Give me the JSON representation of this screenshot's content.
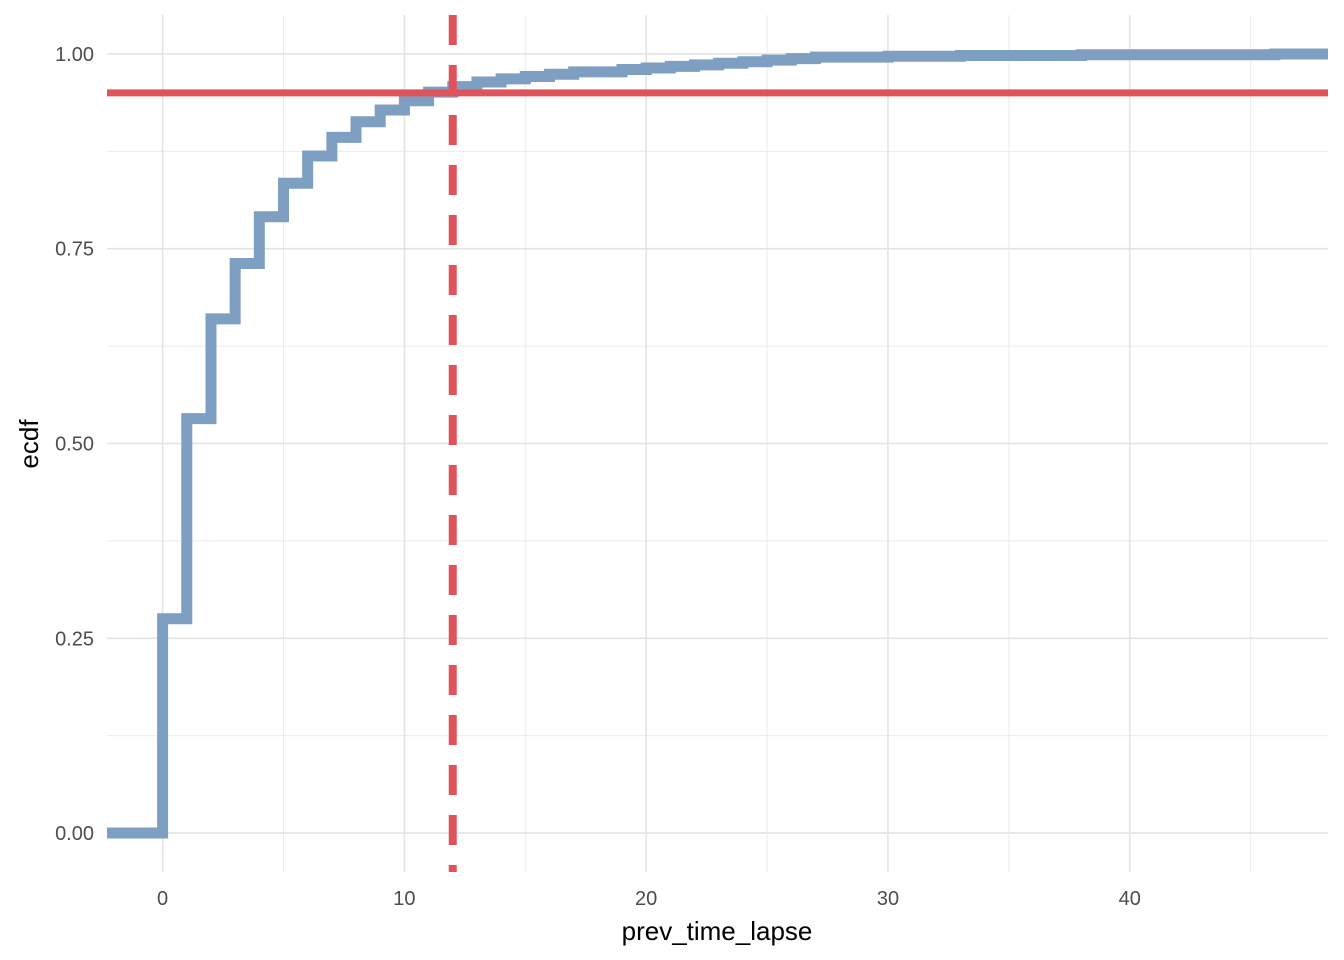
{
  "chart_data": {
    "type": "line",
    "subtype": "step-ecdf",
    "xlabel": "prev_time_lapse",
    "ylabel": "ecdf",
    "xlim": [
      -2.3,
      48.2
    ],
    "ylim": [
      -0.05,
      1.05
    ],
    "x_ticks": [
      0,
      10,
      20,
      30,
      40
    ],
    "x_tick_labels": [
      "0",
      "10",
      "20",
      "30",
      "40"
    ],
    "x_minor_ticks": [
      5,
      15,
      25,
      35,
      45
    ],
    "y_ticks": [
      0,
      0.25,
      0.5,
      0.75,
      1.0
    ],
    "y_tick_labels": [
      "0.00",
      "0.25",
      "0.50",
      "0.75",
      "1.00"
    ],
    "y_minor_ticks": [
      0.125,
      0.375,
      0.625,
      0.875
    ],
    "grid": true,
    "legend": "none",
    "series": [
      {
        "color": "#7f9fc2",
        "step": "post",
        "points": [
          [
            -2.3,
            0.0
          ],
          [
            0,
            0.275
          ],
          [
            1,
            0.532
          ],
          [
            2,
            0.66
          ],
          [
            3,
            0.731
          ],
          [
            4,
            0.791
          ],
          [
            5,
            0.834
          ],
          [
            6,
            0.869
          ],
          [
            7,
            0.893
          ],
          [
            8,
            0.913
          ],
          [
            9,
            0.928
          ],
          [
            10,
            0.94
          ],
          [
            11,
            0.951
          ],
          [
            12,
            0.958
          ],
          [
            13,
            0.964
          ],
          [
            14,
            0.968
          ],
          [
            15,
            0.971
          ],
          [
            16,
            0.974
          ],
          [
            17,
            0.977
          ],
          [
            19,
            0.98
          ],
          [
            20,
            0.982
          ],
          [
            21,
            0.984
          ],
          [
            22,
            0.986
          ],
          [
            23,
            0.988
          ],
          [
            24,
            0.99
          ],
          [
            25,
            0.992
          ],
          [
            26,
            0.994
          ],
          [
            27,
            0.996
          ],
          [
            30,
            0.997
          ],
          [
            33,
            0.998
          ],
          [
            38,
            0.999
          ],
          [
            46,
            1.0
          ],
          [
            48.2,
            1.0
          ]
        ]
      }
    ],
    "reference_lines": [
      {
        "orientation": "horizontal",
        "value": 0.95,
        "color": "#e0535b",
        "style": "solid"
      },
      {
        "orientation": "vertical",
        "value": 12,
        "color": "#e0535b",
        "style": "dashed"
      }
    ]
  }
}
